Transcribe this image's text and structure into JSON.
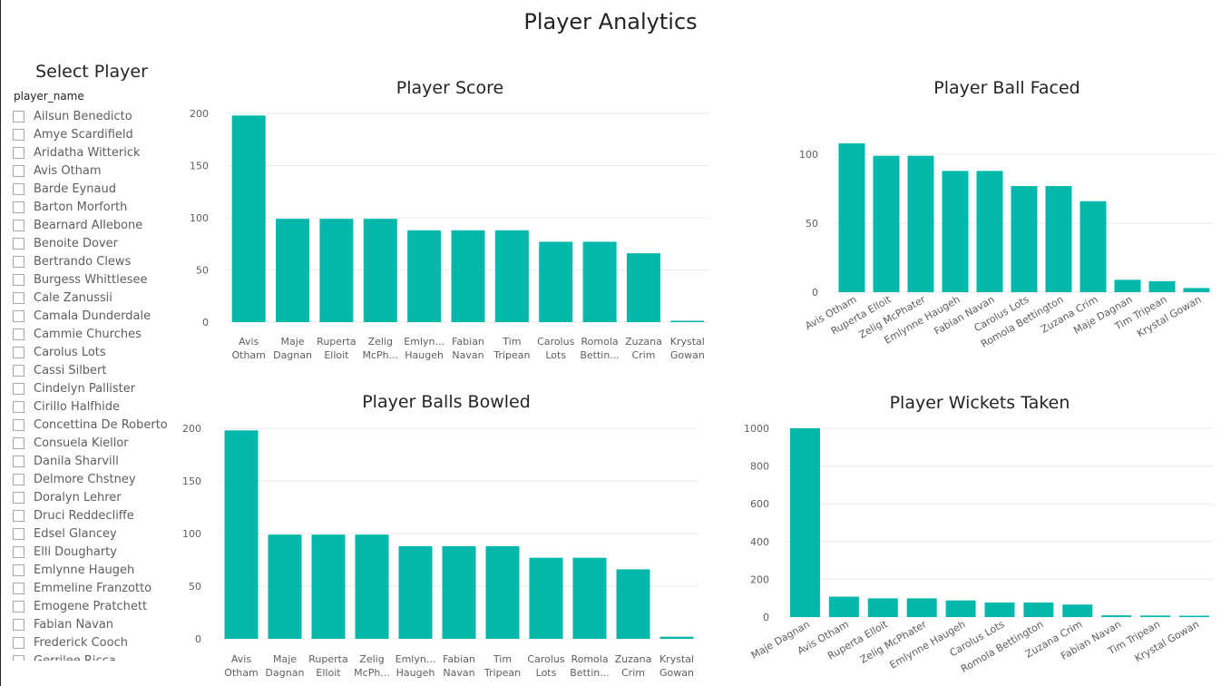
{
  "page_title": "Player Analytics",
  "slicer": {
    "title": "Select Player",
    "field": "player_name",
    "items": [
      "Ailsun Benedicto",
      "Amye Scardifield",
      "Aridatha Witterick",
      "Avis Otham",
      "Barde Eynaud",
      "Barton Morforth",
      "Bearnard Allebone",
      "Benoite Dover",
      "Bertrando Clews",
      "Burgess Whittlesee",
      "Cale Zanussii",
      "Camala Dunderdale",
      "Cammie Churches",
      "Carolus Lots",
      "Cassi Silbert",
      "Cindelyn Pallister",
      "Cirillo Halfhide",
      "Concettina De Roberto",
      "Consuela Kiellor",
      "Danila Sharvill",
      "Delmore Chstney",
      "Doralyn Lehrer",
      "Druci Reddecliffe",
      "Edsel Glancey",
      "Elli Dougharty",
      "Emlynne Haugeh",
      "Emmeline Franzotto",
      "Emogene Pratchett",
      "Fabian Navan",
      "Frederick Cooch",
      "Gerrilee Ricca"
    ]
  },
  "colors": {
    "bar": "#01b8aa",
    "grid": "#eaeaea",
    "axis_text": "#605e5c"
  },
  "chart_data": [
    {
      "id": "score",
      "type": "bar",
      "title": "Player Score",
      "categories": [
        [
          "Avis",
          "Otham"
        ],
        [
          "Maje",
          "Dagnan"
        ],
        [
          "Ruperta",
          "Elloit"
        ],
        [
          "Zelig",
          "McPh..."
        ],
        [
          "Emlyn...",
          "Haugeh"
        ],
        [
          "Fabian",
          "Navan"
        ],
        [
          "Tim",
          "Tripean"
        ],
        [
          "Carolus",
          "Lots"
        ],
        [
          "Romola",
          "Bettin..."
        ],
        [
          "Zuzana",
          "Crim"
        ],
        [
          "Krystal",
          "Gowan"
        ]
      ],
      "values": [
        198,
        99,
        99,
        99,
        88,
        88,
        88,
        77,
        77,
        66,
        1
      ],
      "yticks": [
        0,
        50,
        100,
        150,
        200
      ],
      "ylim": [
        0,
        200
      ],
      "label_style": "wrap",
      "grid": true
    },
    {
      "id": "faced",
      "type": "bar",
      "title": "Player Ball Faced",
      "categories": [
        "Avis Otham",
        "Ruperta Elloit",
        "Zelig McPhater",
        "Emlynne Haugeh",
        "Fabian Navan",
        "Carolus Lots",
        "Romola Bettington",
        "Zuzana Crim",
        "Maje Dagnan",
        "Tim Tripean",
        "Krystal Gowan"
      ],
      "values": [
        108,
        99,
        99,
        88,
        88,
        77,
        77,
        66,
        9,
        8,
        3
      ],
      "yticks": [
        0,
        50,
        100
      ],
      "ylim": [
        0,
        108
      ],
      "label_style": "rotated",
      "grid": true
    },
    {
      "id": "bowled",
      "type": "bar",
      "title": "Player Balls Bowled",
      "categories": [
        [
          "Avis",
          "Otham"
        ],
        [
          "Maje",
          "Dagnan"
        ],
        [
          "Ruperta",
          "Elloit"
        ],
        [
          "Zelig",
          "McPh..."
        ],
        [
          "Emlyn...",
          "Haugeh"
        ],
        [
          "Fabian",
          "Navan"
        ],
        [
          "Tim",
          "Tripean"
        ],
        [
          "Carolus",
          "Lots"
        ],
        [
          "Romola",
          "Bettin..."
        ],
        [
          "Zuzana",
          "Crim"
        ],
        [
          "Krystal",
          "Gowan"
        ]
      ],
      "values": [
        198,
        99,
        99,
        99,
        88,
        88,
        88,
        77,
        77,
        66,
        2
      ],
      "yticks": [
        0,
        50,
        100,
        150,
        200
      ],
      "ylim": [
        0,
        200
      ],
      "label_style": "wrap",
      "grid": true
    },
    {
      "id": "wickets",
      "type": "bar",
      "title": "Player Wickets Taken",
      "categories": [
        "Maje Dagnan",
        "Avis Otham",
        "Ruperta Elloit",
        "Zelig McPhater",
        "Emlynne Haugeh",
        "Carolus Lots",
        "Romola Bettington",
        "Zuzana Crim",
        "Fabian Navan",
        "Tim Tripean",
        "Krystal Gowan"
      ],
      "values": [
        1000,
        108,
        99,
        99,
        88,
        77,
        77,
        66,
        9,
        8,
        3
      ],
      "yticks": [
        0,
        200,
        400,
        600,
        800,
        1000
      ],
      "ylim": [
        0,
        1000
      ],
      "label_style": "rotated",
      "grid": true
    }
  ]
}
